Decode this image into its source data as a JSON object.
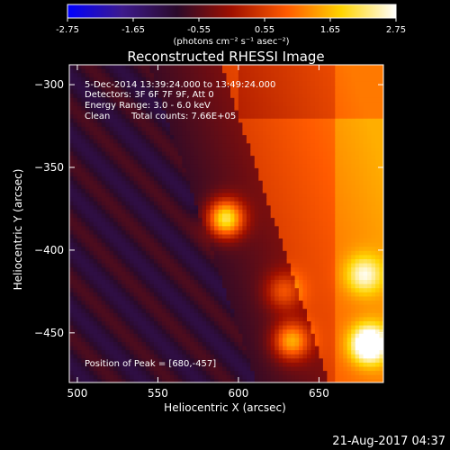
{
  "colorbar": {
    "ticks": [
      "-2.75",
      "-1.65",
      "-0.55",
      "0.55",
      "1.65",
      "2.75"
    ],
    "tick_values": [
      -2.75,
      -1.65,
      -0.55,
      0.55,
      1.65,
      2.75
    ],
    "range": [
      -2.75,
      2.75
    ],
    "unit_label": "(photons cm⁻² s⁻¹ asec⁻²)",
    "colormap": "rhessi-heat",
    "colors": [
      "#0000ff",
      "#3d1a8c",
      "#2a0a2a",
      "#a01000",
      "#ff5a00",
      "#ffd400",
      "#ffffff"
    ]
  },
  "chart_data": {
    "type": "heatmap",
    "title": "Reconstructed RHESSI Image",
    "xlabel": "Heliocentric X (arcsec)",
    "ylabel": "Heliocentric Y (arcsec)",
    "xlim": [
      495,
      690
    ],
    "ylim": [
      -480,
      -288
    ],
    "x_ticks": [
      500,
      550,
      600,
      650
    ],
    "y_ticks": [
      -300,
      -350,
      -400,
      -450
    ],
    "x_tick_labels": [
      "500",
      "550",
      "600",
      "650"
    ],
    "y_tick_labels": [
      "−300",
      "−350",
      "−400",
      "−450"
    ],
    "annotations": [
      "5-Dec-2014 13:39:24.000 to 13:49:24.000",
      "Detectors: 3F 6F 7F 9F, Att 0",
      "Energy Range: 3.0 - 6.0 keV",
      "Clean",
      "Total counts: 7.66E+05"
    ],
    "peak_label": "Position of Peak = [680,-457]",
    "peak": [
      680,
      -457
    ],
    "sources": [
      {
        "x": 592,
        "y": -381,
        "intensity": 2.75
      },
      {
        "x": 633,
        "y": -455,
        "intensity": 2.0
      },
      {
        "x": 681,
        "y": -457,
        "intensity": 2.6
      },
      {
        "x": 678,
        "y": -415,
        "intensity": 1.4
      },
      {
        "x": 628,
        "y": -425,
        "intensity": 1.2
      }
    ],
    "grid": false
  },
  "footer": {
    "date": "21-Aug-2017 04:37"
  }
}
